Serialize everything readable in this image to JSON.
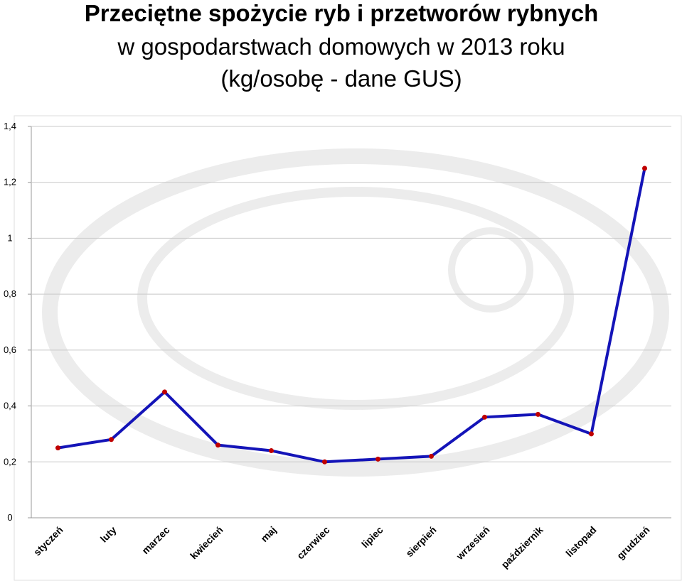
{
  "chart_data": {
    "type": "line",
    "title": [
      "Przeciętne spożycie ryb i przetworów rybnych",
      "w gospodarstwach domowych w 2013 roku",
      "(kg/osobę - dane GUS)"
    ],
    "categories": [
      "styczeń",
      "luty",
      "marzec",
      "kwiecień",
      "maj",
      "czerwiec",
      "lipiec",
      "sierpień",
      "wrzesień",
      "październik",
      "listopad",
      "grudzień"
    ],
    "values": [
      0.25,
      0.28,
      0.45,
      0.26,
      0.24,
      0.2,
      0.21,
      0.22,
      0.36,
      0.37,
      0.3,
      1.25
    ],
    "color": "#1414b8",
    "marker_color": "#c00000",
    "ylim": [
      0,
      1.4
    ],
    "yticks": [
      0,
      {
        "value": 0.2,
        "label": "0,2"
      },
      {
        "value": 0.4,
        "label": "0,4"
      },
      {
        "value": 0.6,
        "label": "0,6"
      },
      {
        "value": 0.8,
        "label": "0,8"
      },
      1,
      {
        "value": 1.2,
        "label": "1,2"
      },
      {
        "value": 1.4,
        "label": "1,4"
      }
    ],
    "grid": true
  }
}
